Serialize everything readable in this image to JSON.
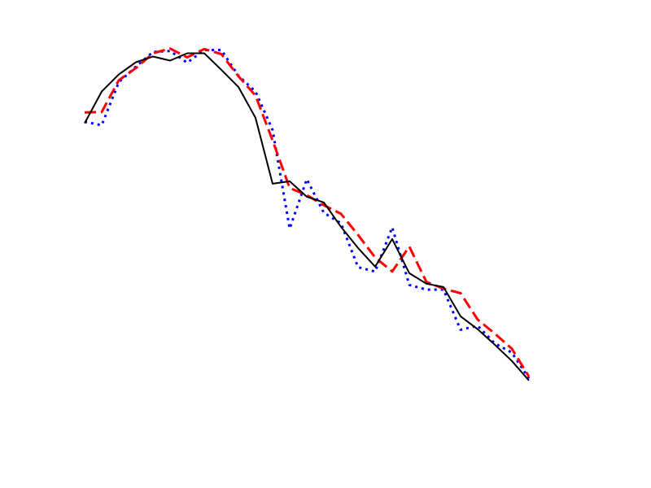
{
  "chart_data": {
    "type": "line",
    "title": "",
    "xlabel": "",
    "ylabel": "",
    "axes_visible": false,
    "grid": false,
    "legend": "none",
    "xlim": [
      0,
      26
    ],
    "ylim": [
      0,
      1
    ],
    "x": [
      0,
      1,
      2,
      3,
      4,
      5,
      6,
      7,
      8,
      9,
      10,
      11,
      12,
      13,
      14,
      15,
      16,
      17,
      18,
      19,
      20,
      21,
      22,
      23,
      24,
      25,
      26
    ],
    "series": [
      {
        "style": "solid",
        "color": "#000000",
        "values": [
          0.7475,
          0.8125,
          0.8475,
          0.8725,
          0.8842,
          0.8759,
          0.8909,
          0.8909,
          0.8568,
          0.8218,
          0.7585,
          0.6235,
          0.6285,
          0.5969,
          0.5852,
          0.5352,
          0.4919,
          0.4536,
          0.5102,
          0.4402,
          0.4186,
          0.4119,
          0.3519,
          0.3253,
          0.2936,
          0.2603,
          0.2203
        ]
      },
      {
        "style": "dashed",
        "color": "#ff0000",
        "values": [
          0.7695,
          0.7705,
          0.8355,
          0.8605,
          0.8908,
          0.9005,
          0.8825,
          0.8995,
          0.8892,
          0.8438,
          0.8041,
          0.7121,
          0.6146,
          0.6001,
          0.5795,
          0.5619,
          0.5187,
          0.4724,
          0.4439,
          0.4947,
          0.4221,
          0.4085,
          0.3991,
          0.3452,
          0.3165,
          0.2854,
          0.2284
        ]
      },
      {
        "style": "dotted",
        "color": "#0000ff",
        "values": [
          0.7503,
          0.7435,
          0.8315,
          0.8635,
          0.8935,
          0.8955,
          0.8715,
          0.8975,
          0.8975,
          0.8447,
          0.8125,
          0.7335,
          0.5315,
          0.6328,
          0.5638,
          0.5425,
          0.4525,
          0.4435,
          0.5342,
          0.4161,
          0.4065,
          0.4065,
          0.3243,
          0.3325,
          0.2963,
          0.2775,
          0.2245
        ]
      }
    ]
  }
}
